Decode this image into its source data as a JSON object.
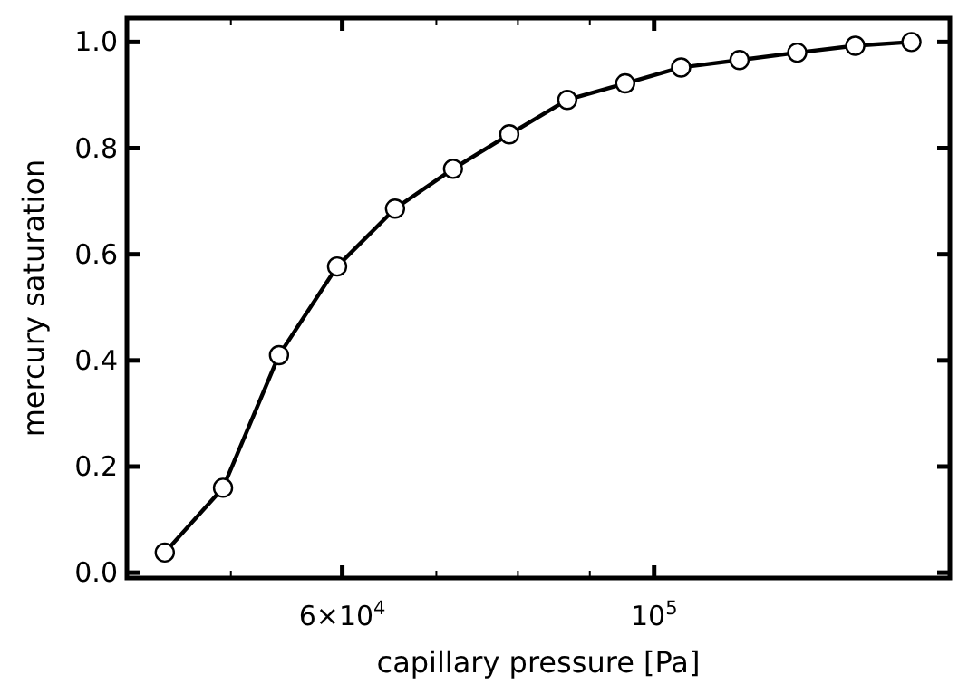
{
  "chart_data": {
    "type": "line",
    "xlabel": "capillary pressure [Pa]",
    "ylabel": "mercury saturation",
    "log": "x",
    "marker": "circle",
    "line_style": "solid",
    "grid": false,
    "xlim": [
      42170,
      162300
    ],
    "ylim": [
      -0.01,
      1.045
    ],
    "xticks": [
      {
        "value": 50000,
        "label": null
      },
      {
        "value": 60000,
        "label": "6×10$^{4}$"
      },
      {
        "value": 70000,
        "label": null
      },
      {
        "value": 80000,
        "label": null
      },
      {
        "value": 90000,
        "label": null
      },
      {
        "value": 100000,
        "label": "10$^{5}$"
      }
    ],
    "yticks": [
      {
        "value": 0,
        "label": "0.0"
      },
      {
        "value": 0.2,
        "label": "0.2"
      },
      {
        "value": 0.4,
        "label": "0.4"
      },
      {
        "value": 0.6,
        "label": "0.6"
      },
      {
        "value": 0.8,
        "label": "0.8"
      },
      {
        "value": 1,
        "label": "1.0"
      }
    ],
    "x": [
      44870,
      49360,
      54100,
      59500,
      65420,
      71940,
      78880,
      86740,
      95370,
      104500,
      115000,
      126400,
      139000,
      152400
    ],
    "series": [
      {
        "color": "#000000",
        "values": [
          0.038,
          0.16,
          0.41,
          0.577,
          0.686,
          0.761,
          0.826,
          0.891,
          0.922,
          0.952,
          0.966,
          0.98,
          0.993,
          1.0
        ]
      }
    ]
  }
}
